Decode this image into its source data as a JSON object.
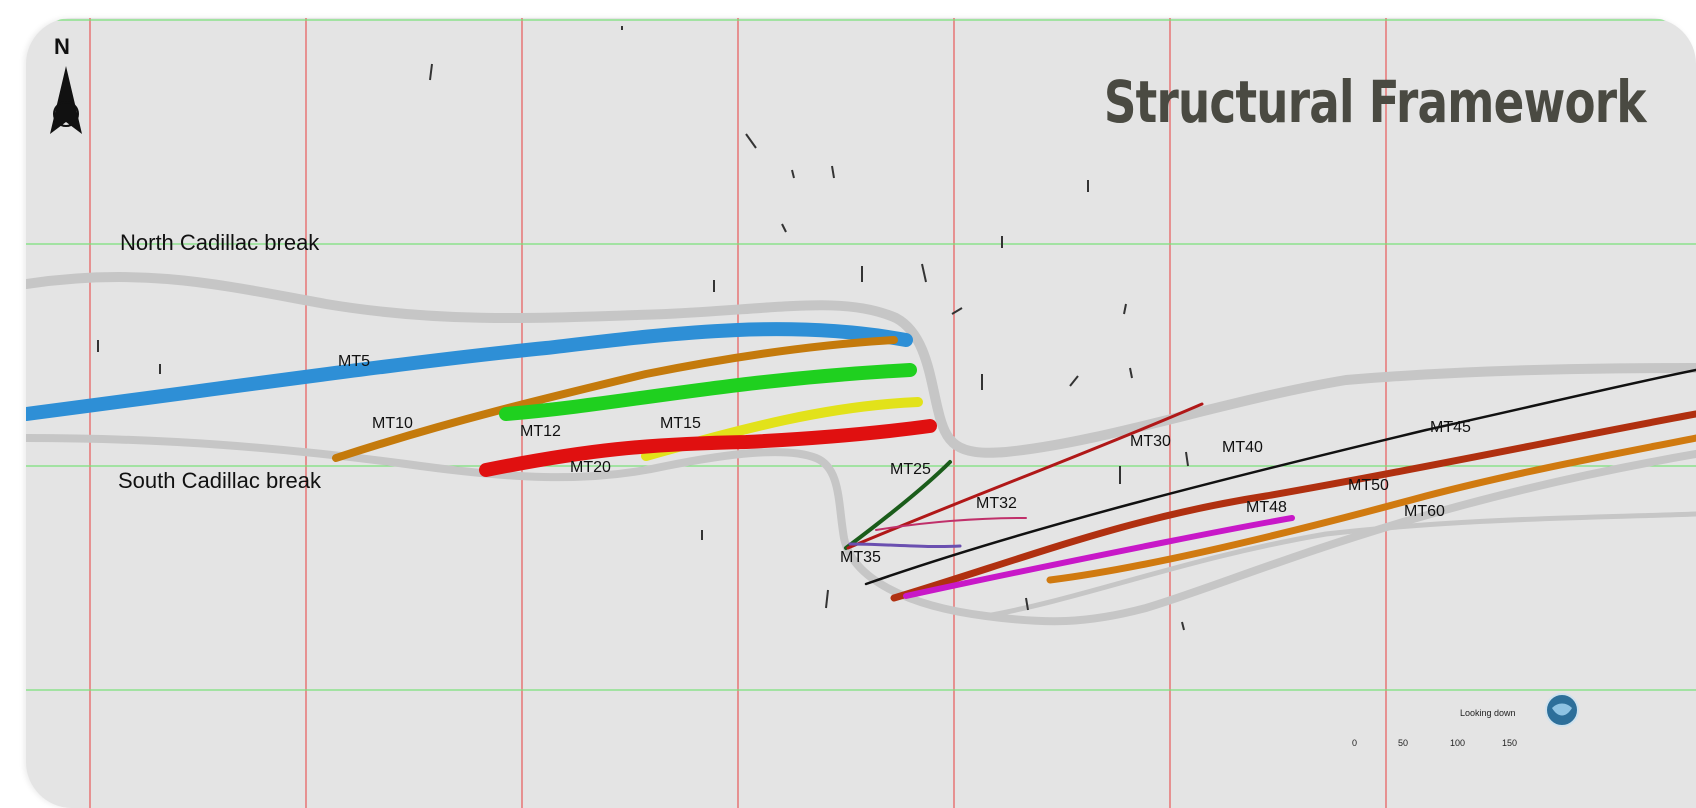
{
  "title": "Structural Framework",
  "north_arrow": {
    "label": "N"
  },
  "breaks": [
    {
      "id": "north",
      "label": "North Cadillac break"
    },
    {
      "id": "south",
      "label": "South Cadillac break"
    }
  ],
  "fault_labels": [
    "MT5",
    "MT10",
    "MT12",
    "MT15",
    "MT20",
    "MT25",
    "MT30",
    "MT32",
    "MT35",
    "MT40",
    "MT45",
    "MT48",
    "MT50",
    "MT60"
  ],
  "colors": {
    "background": "#e4e4e4",
    "grid_vertical": "#e85a5a",
    "grid_horizontal": "#7be07b",
    "break_band": "#c9c9c9",
    "MT5": "#2e8fd6",
    "MT10": "#c47a0c",
    "MT12": "#1fd01f",
    "MT15": "#e2e21a",
    "MT20": "#e01010",
    "MT25": "#1a5c1a",
    "MT30": "#b01818",
    "MT32": "#c0306a",
    "MT35": "#6a4fb0",
    "MT40": "#111111",
    "MT45": "#b03010",
    "MT48": "#c818c8",
    "MT60": "#d07a10"
  },
  "view_indicator": {
    "label": "Looking down"
  },
  "scale_bar": {
    "ticks": [
      "0",
      "50",
      "100",
      "150"
    ]
  }
}
